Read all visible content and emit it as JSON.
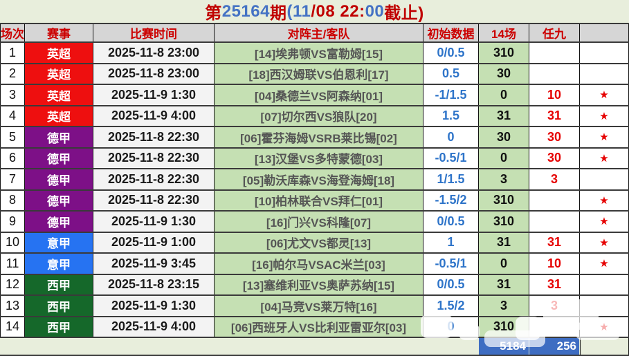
{
  "page": {
    "title_segments": [
      {
        "text": "第",
        "color": "#c00000"
      },
      {
        "text": "25164",
        "color": "#4472c4"
      },
      {
        "text": "期 ",
        "color": "#c00000"
      },
      {
        "text": "(11",
        "color": "#4472c4"
      },
      {
        "text": "/08 22:",
        "color": "#c00000"
      },
      {
        "text": "00",
        "color": "#4472c4"
      },
      {
        "text": " 截止)",
        "color": "#c00000"
      }
    ],
    "colors": {
      "background": "#e8eedc",
      "header_bg": "#d6d6d6",
      "header_text": "#cc0000",
      "match_cell_bg": "#c5e0b3",
      "time_cell_bg": "#f3f3f3",
      "initial_data_text": "#2e74c9",
      "r9_text": "#e60000",
      "footer_blue": "#3e6dc2"
    }
  },
  "columns": [
    "场次",
    "赛事",
    "比赛时间",
    "对阵主/客队",
    "初始数据",
    "14场",
    "任九",
    ""
  ],
  "league_colors": {
    "英超": "#ee0f0f",
    "德甲": "#7d1087",
    "意甲": "#2673f2",
    "西甲": "#15682a"
  },
  "star_icon": "★",
  "rows": [
    {
      "no": "1",
      "league": "英超",
      "time": "2025-11-8 23:00",
      "match": "[14]埃弗顿VS富勒姆[15]",
      "initial": "0/0.5",
      "c14": "310",
      "r9": "",
      "star": false
    },
    {
      "no": "2",
      "league": "英超",
      "time": "2025-11-8 23:00",
      "match": "[18]西汉姆联VS伯恩利[17]",
      "initial": "0.5",
      "c14": "30",
      "r9": "",
      "star": false
    },
    {
      "no": "3",
      "league": "英超",
      "time": "2025-11-9 1:30",
      "match": "[04]桑德兰VS阿森纳[01]",
      "initial": "-1/1.5",
      "c14": "0",
      "r9": "10",
      "star": true
    },
    {
      "no": "4",
      "league": "英超",
      "time": "2025-11-9 4:00",
      "match": "[07]切尔西VS狼队[20]",
      "initial": "1.5",
      "c14": "31",
      "r9": "31",
      "star": true
    },
    {
      "no": "5",
      "league": "德甲",
      "time": "2025-11-8 22:30",
      "match": "[06]霍芬海姆VSRB莱比锡[02]",
      "initial": "0",
      "c14": "30",
      "r9": "30",
      "star": true
    },
    {
      "no": "6",
      "league": "德甲",
      "time": "2025-11-8 22:30",
      "match": "[13]汉堡VS多特蒙德[03]",
      "initial": "-0.5/1",
      "c14": "0",
      "r9": "30",
      "star": true
    },
    {
      "no": "7",
      "league": "德甲",
      "time": "2025-11-8 22:30",
      "match": "[05]勒沃库森VS海登海姆[18]",
      "initial": "1/1.5",
      "c14": "3",
      "r9": "3",
      "star": false
    },
    {
      "no": "8",
      "league": "德甲",
      "time": "2025-11-8 22:30",
      "match": "[10]柏林联合VS拜仁[01]",
      "initial": "-1.5/2",
      "c14": "310",
      "r9": "",
      "star": true
    },
    {
      "no": "9",
      "league": "德甲",
      "time": "2025-11-9 1:30",
      "match": "[16]门兴VS科隆[07]",
      "initial": "0/0.5",
      "c14": "310",
      "r9": "",
      "star": true
    },
    {
      "no": "10",
      "league": "意甲",
      "time": "2025-11-9 1:00",
      "match": "[06]尤文VS都灵[13]",
      "initial": "1",
      "c14": "31",
      "r9": "31",
      "star": true
    },
    {
      "no": "11",
      "league": "意甲",
      "time": "2025-11-9 3:45",
      "match": "[16]帕尔马VSAC米兰[03]",
      "initial": "-0.5/1",
      "c14": "0",
      "r9": "10",
      "star": true
    },
    {
      "no": "12",
      "league": "西甲",
      "time": "2025-11-8 23:15",
      "match": "[13]塞维利亚VS奥萨苏纳[15]",
      "initial": "0/0.5",
      "c14": "31",
      "r9": "31",
      "star": false
    },
    {
      "no": "13",
      "league": "西甲",
      "time": "2025-11-9 1:30",
      "match": "[04]马竞VS莱万特[16]",
      "initial": "1.5/2",
      "c14": "3",
      "r9": "3",
      "star": false
    },
    {
      "no": "14",
      "league": "西甲",
      "time": "2025-11-9 4:00",
      "match": "[06]西班牙人VS比利亚雷亚尔[03]",
      "initial": "0",
      "c14": "310",
      "r9": "",
      "star": true
    }
  ],
  "footer": {
    "c14_total": "5184",
    "r9_total": "256"
  }
}
